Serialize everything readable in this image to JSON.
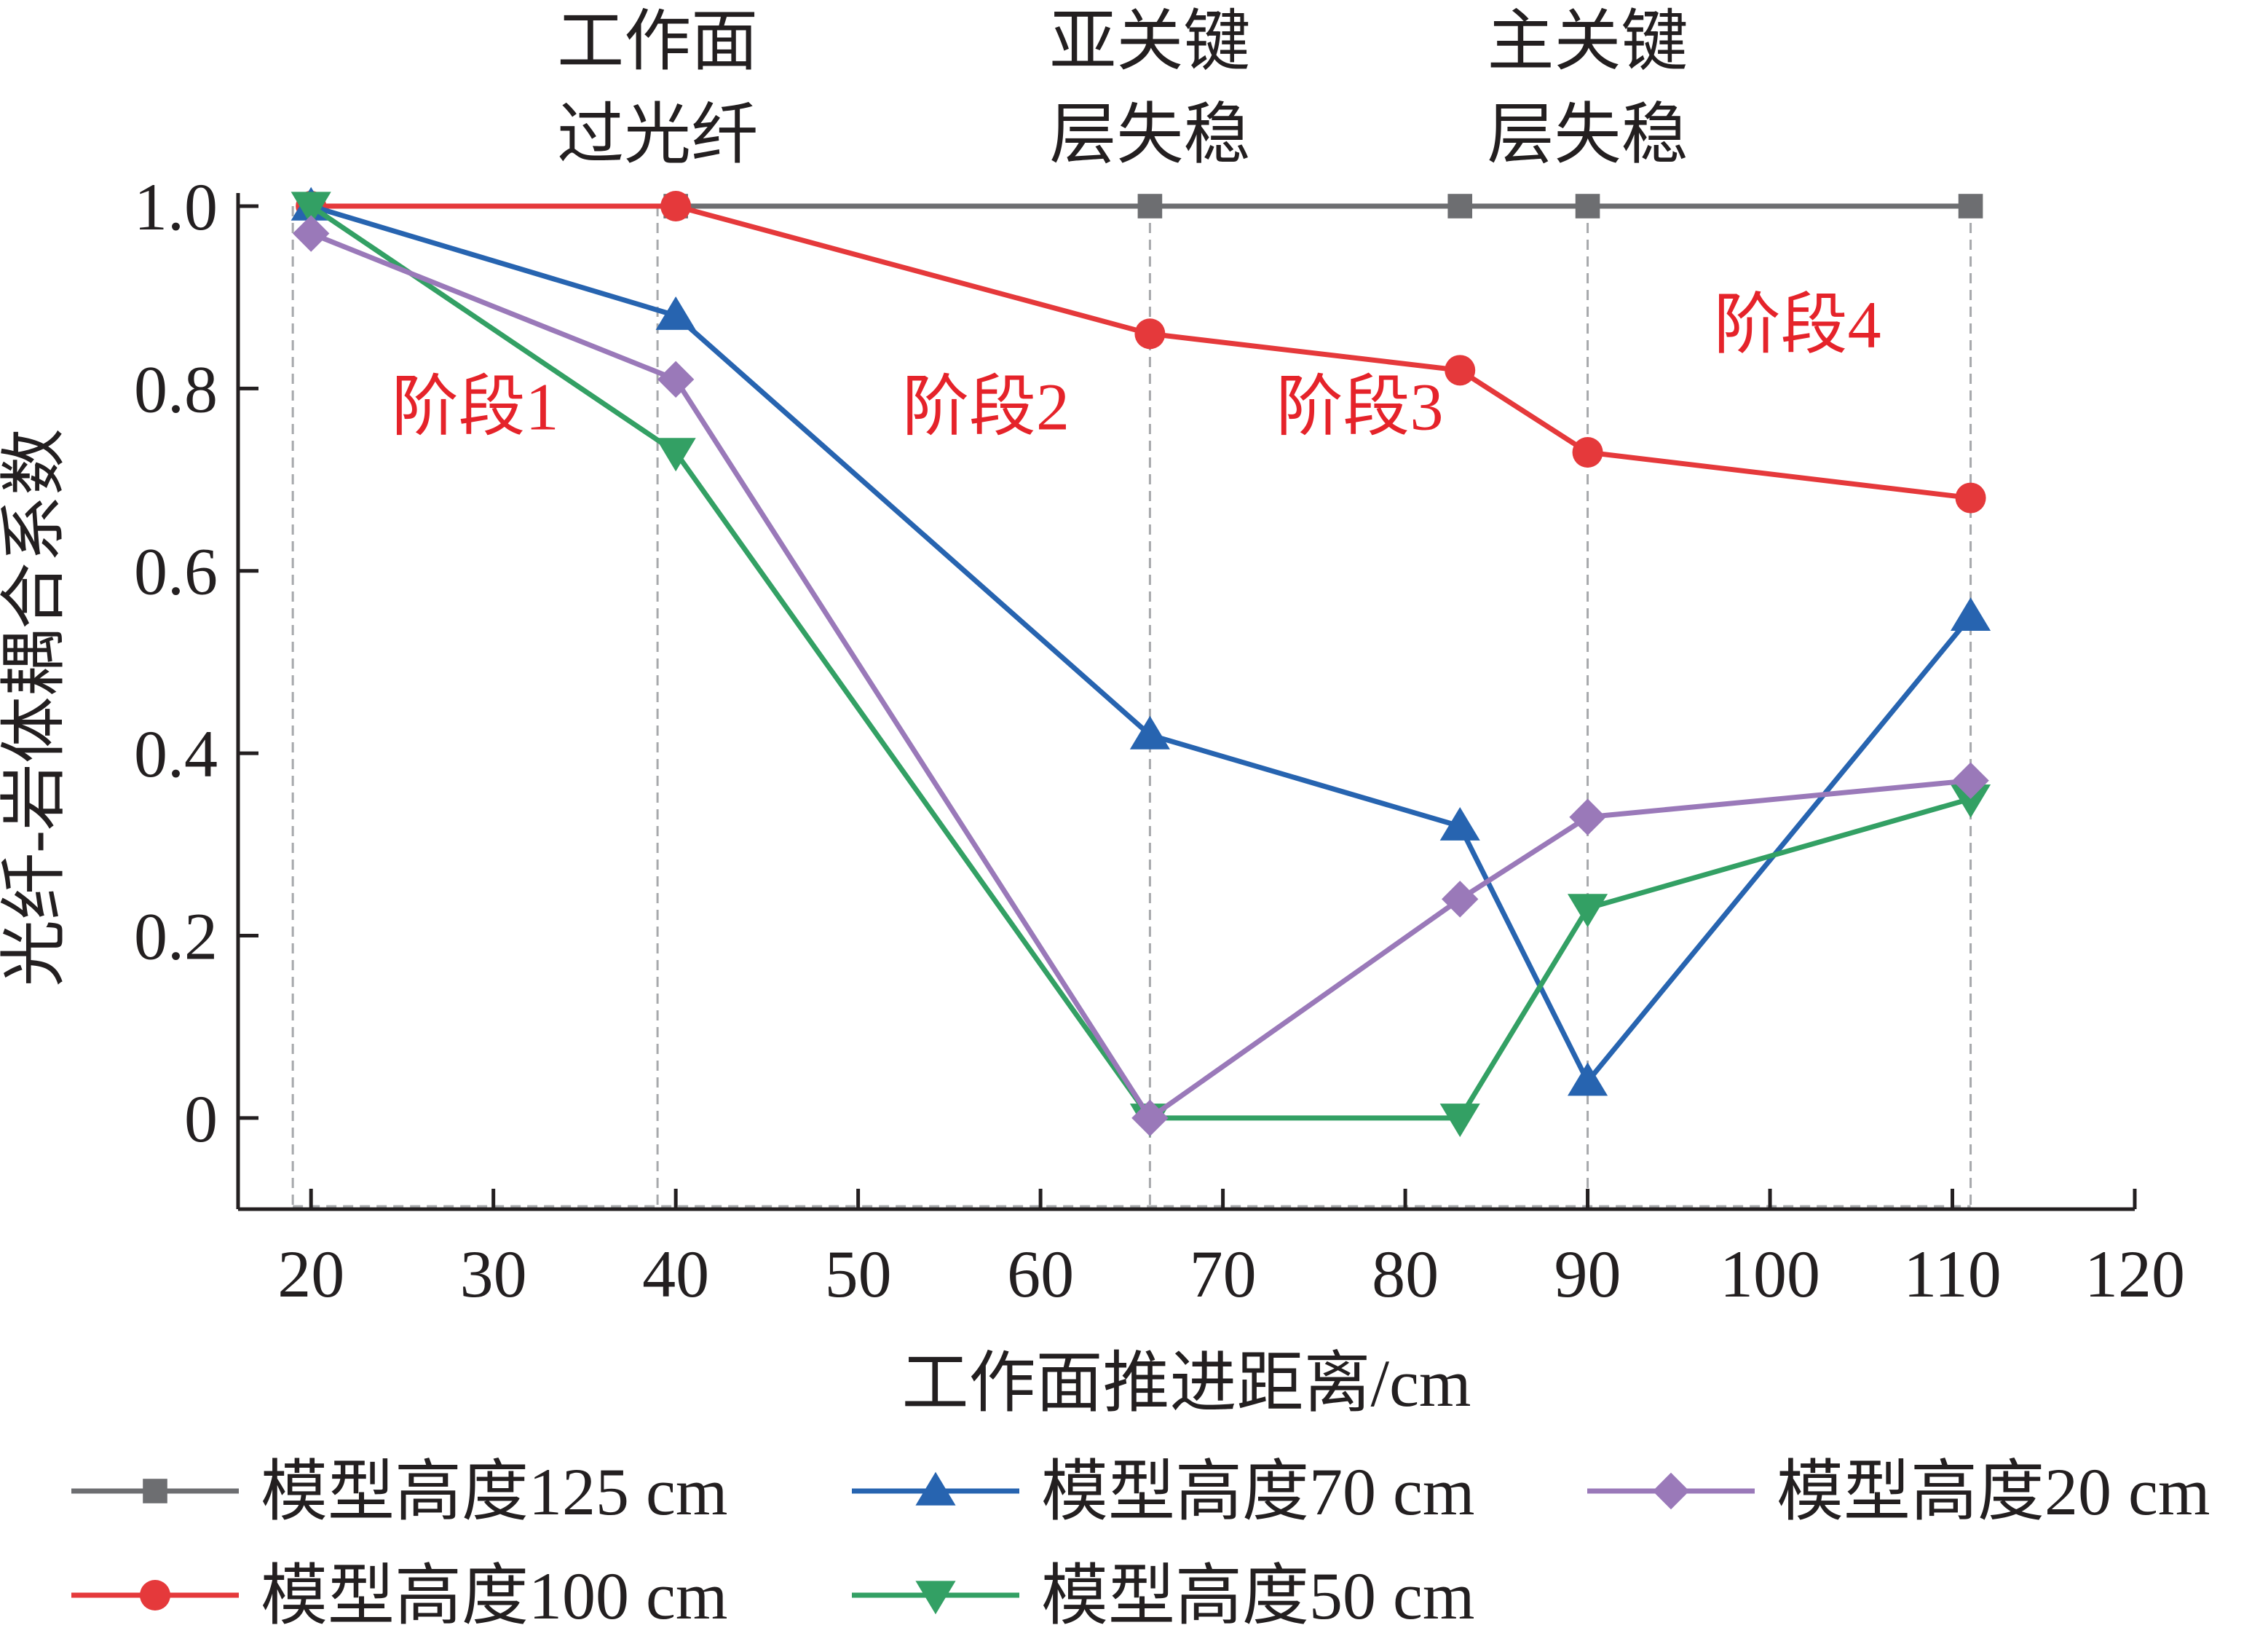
{
  "chart_data": {
    "type": "line",
    "xlabel": "工作面推进距离/cm",
    "ylabel": "光纤-岩体耦合系数",
    "xlim": [
      16,
      120
    ],
    "ylim": [
      -0.1,
      1.0
    ],
    "xticks": [
      20,
      30,
      40,
      50,
      60,
      70,
      80,
      90,
      100,
      110,
      120
    ],
    "yticks": [
      0,
      0.2,
      0.4,
      0.6,
      0.8,
      1.0
    ],
    "ytick_labels": [
      "0",
      "0.2",
      "0.4",
      "0.6",
      "0.8",
      "1.0"
    ],
    "grid": false,
    "legend_position": "bottom",
    "events": [
      {
        "x": 19,
        "lines": []
      },
      {
        "x": 39,
        "lines": [
          "工作面",
          "过光纤"
        ]
      },
      {
        "x": 66,
        "lines": [
          "亚关键",
          "层失稳"
        ]
      },
      {
        "x": 90,
        "lines": [
          "主关键",
          "层失稳"
        ]
      },
      {
        "x": 111,
        "lines": []
      }
    ],
    "stages": [
      {
        "label": "阶段1",
        "x": 29,
        "y": 0.755
      },
      {
        "label": "阶段2",
        "x": 57,
        "y": 0.755
      },
      {
        "label": "阶段3",
        "x": 77.5,
        "y": 0.755
      },
      {
        "label": "阶段4",
        "x": 101.5,
        "y": 0.845
      }
    ],
    "series": [
      {
        "name": "模型高度125 cm",
        "color": "#6d6e71",
        "marker": "square",
        "x": [
          20,
          40,
          66,
          83,
          90,
          111
        ],
        "y": [
          1.0,
          1.0,
          1.0,
          1.0,
          1.0,
          1.0
        ]
      },
      {
        "name": "模型高度100 cm",
        "color": "#e5393b",
        "marker": "circle",
        "x": [
          20,
          40,
          66,
          83,
          90,
          111
        ],
        "y": [
          1.0,
          1.0,
          0.86,
          0.82,
          0.73,
          0.68
        ]
      },
      {
        "name": "模型高度70 cm",
        "color": "#2764b0",
        "marker": "triangle-up",
        "x": [
          20,
          40,
          66,
          83,
          90,
          111
        ],
        "y": [
          1.0,
          0.88,
          0.42,
          0.32,
          0.04,
          0.55
        ]
      },
      {
        "name": "模型高度50 cm",
        "color": "#33a064",
        "marker": "triangle-down",
        "x": [
          20,
          40,
          66,
          83,
          90,
          111
        ],
        "y": [
          1.0,
          0.73,
          0.0,
          0.0,
          0.23,
          0.35
        ]
      },
      {
        "name": "模型高度20 cm",
        "color": "#9a79b9",
        "marker": "diamond",
        "x": [
          20,
          40,
          66,
          83,
          90,
          111
        ],
        "y": [
          0.97,
          0.81,
          0.0,
          0.24,
          0.33,
          0.37
        ]
      }
    ]
  }
}
